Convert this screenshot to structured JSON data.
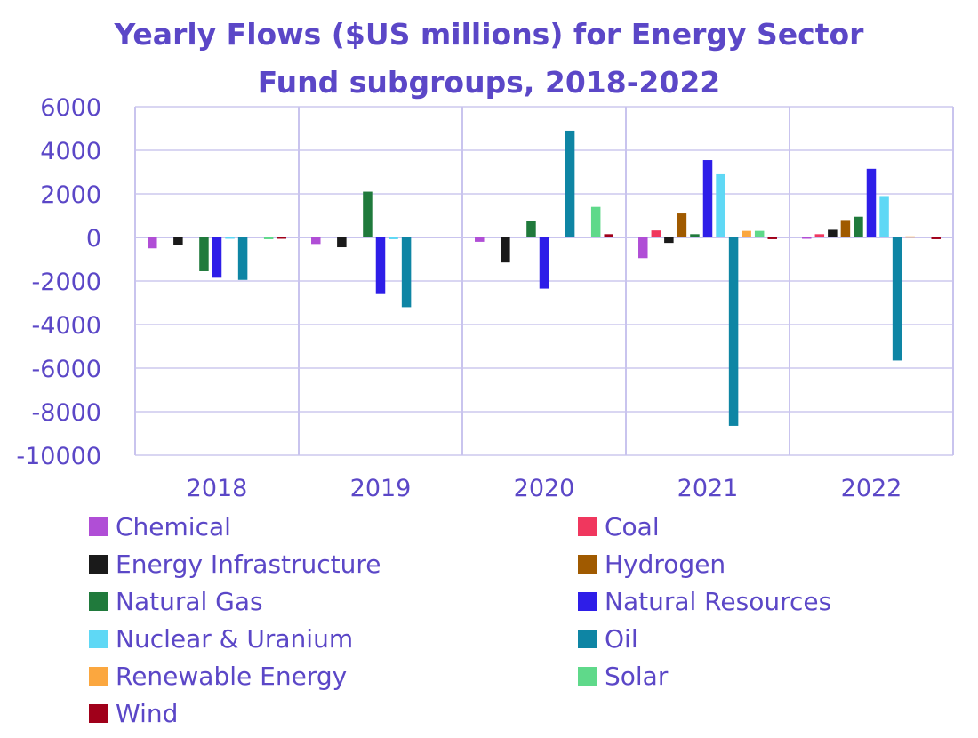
{
  "chart_data": {
    "type": "bar",
    "title_line1": "Yearly Flows ($US millions) for Energy Sector",
    "title_line2": "Fund subgroups, 2018-2022",
    "xlabel": "",
    "ylabel": "",
    "ylim": [
      -10000,
      6000
    ],
    "yticks": [
      6000,
      4000,
      2000,
      0,
      -2000,
      -4000,
      -6000,
      -8000,
      -10000
    ],
    "ytick_labels": [
      "6000",
      "4000",
      "2000",
      "0",
      "-2000",
      "-4000",
      "-6000",
      "-8000",
      "-10000"
    ],
    "grid": true,
    "legend_position": "bottom",
    "categories": [
      "2018",
      "2019",
      "2020",
      "2021",
      "2022"
    ],
    "series": [
      {
        "name": "Chemical",
        "color": "#b04ed6",
        "values": [
          -500,
          -300,
          -200,
          -950,
          -50
        ]
      },
      {
        "name": "Coal",
        "color": "#f0375e",
        "values": [
          0,
          0,
          0,
          320,
          150
        ]
      },
      {
        "name": "Energy Infrastructure",
        "color": "#1a1a1a",
        "values": [
          -350,
          -450,
          -1150,
          -250,
          350
        ]
      },
      {
        "name": "Hydrogen",
        "color": "#a05a00",
        "values": [
          0,
          0,
          0,
          1100,
          800
        ]
      },
      {
        "name": "Natural Gas",
        "color": "#207a3c",
        "values": [
          -1550,
          2100,
          750,
          150,
          950
        ]
      },
      {
        "name": "Natural Resources",
        "color": "#2e1ee8",
        "values": [
          -1850,
          -2600,
          -2350,
          3550,
          3150
        ]
      },
      {
        "name": "Nuclear & Uranium",
        "color": "#5fd8f5",
        "values": [
          -50,
          -80,
          0,
          2900,
          1900
        ]
      },
      {
        "name": "Oil",
        "color": "#0e85a4",
        "values": [
          -1950,
          -3200,
          4900,
          -8650,
          -5650
        ]
      },
      {
        "name": "Renewable Energy",
        "color": "#fba73f",
        "values": [
          0,
          0,
          0,
          300,
          50
        ]
      },
      {
        "name": "Solar",
        "color": "#5fd98a",
        "values": [
          -80,
          0,
          1400,
          300,
          0
        ]
      },
      {
        "name": "Wind",
        "color": "#a0001a",
        "values": [
          -50,
          0,
          150,
          -80,
          -80
        ]
      }
    ]
  },
  "colors": {
    "text": "#5b47c7",
    "grid": "#d9d6f2",
    "frame": "#c9c4ee"
  }
}
